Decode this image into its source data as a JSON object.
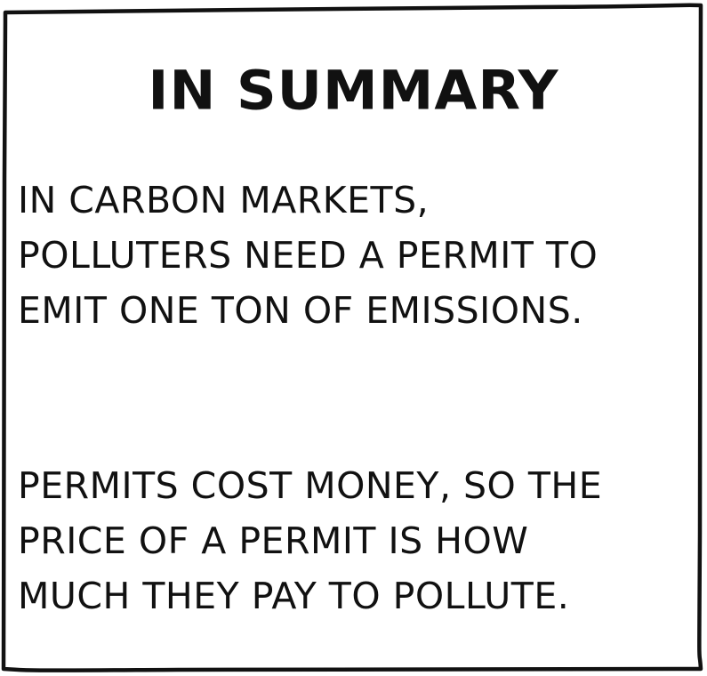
{
  "panel": {
    "title": "IN SUMMARY",
    "paragraph_1": [
      "IN CARBON MARKETS,",
      "POLLUTERS NEED A PERMIT TO",
      "EMIT ONE TON OF EMISSIONS."
    ],
    "paragraph_2": [
      "PERMITS COST MONEY, SO THE",
      "PRICE OF A PERMIT IS HOW",
      "MUCH THEY PAY TO POLLUTE."
    ],
    "border_color": "#111111",
    "background_color": "#ffffff"
  }
}
